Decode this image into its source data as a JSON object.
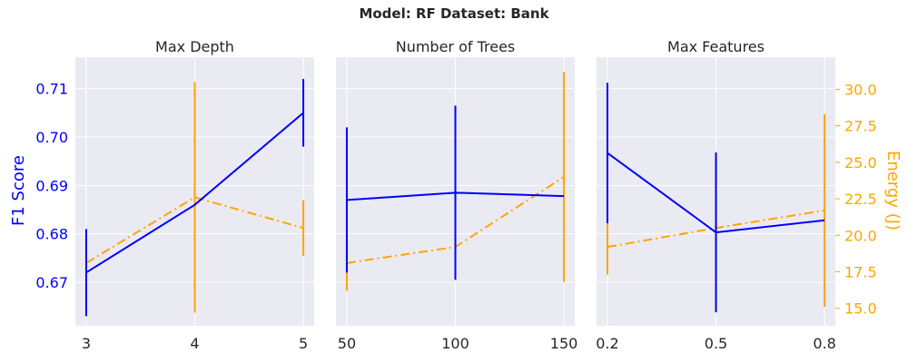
{
  "chart_data": {
    "suptitle": "Model: RF Dataset: Bank",
    "ylabel_left": "F1 Score",
    "ylabel_right": "Energy (J)",
    "left_axis": {
      "ylim": [
        0.661,
        0.7165
      ],
      "ticks": [
        "0.67",
        "0.68",
        "0.69",
        "0.70",
        "0.71"
      ],
      "tick_values": [
        0.67,
        0.68,
        0.69,
        0.7,
        0.71
      ],
      "color": "#0000ff"
    },
    "right_axis": {
      "ylim": [
        13.8,
        32.2
      ],
      "ticks": [
        "15.0",
        "17.5",
        "20.0",
        "22.5",
        "25.0",
        "27.5",
        "30.0"
      ],
      "tick_values": [
        15.0,
        17.5,
        20.0,
        22.5,
        25.0,
        27.5,
        30.0
      ],
      "color": "#ffa500"
    },
    "panels": [
      {
        "type": "line",
        "title": "Max Depth",
        "x": [
          3,
          4,
          5
        ],
        "xticks": [
          "3",
          "4",
          "5"
        ],
        "xlim": [
          2.9,
          5.1
        ],
        "f1": {
          "values": [
            0.672,
            0.686,
            0.705
          ],
          "err": [
            0.009,
            0.0,
            0.007
          ]
        },
        "energy": {
          "values": [
            18.1,
            22.6,
            20.5
          ],
          "err": [
            1.0,
            7.9,
            1.9
          ]
        }
      },
      {
        "type": "line",
        "title": "Number of Trees",
        "x": [
          50,
          100,
          150
        ],
        "xticks": [
          "50",
          "100",
          "150"
        ],
        "xlim": [
          45,
          155
        ],
        "f1": {
          "values": [
            0.687,
            0.6885,
            0.6878
          ],
          "err": [
            0.015,
            0.018,
            0.0
          ]
        },
        "energy": {
          "values": [
            18.1,
            19.2,
            24.0
          ],
          "err": [
            1.9,
            1.6,
            7.2
          ]
        }
      },
      {
        "type": "line",
        "title": "Max Features",
        "x": [
          0.2,
          0.5,
          0.8
        ],
        "xticks": [
          "0.2",
          "0.5",
          "0.8"
        ],
        "xlim": [
          0.17,
          0.83
        ],
        "f1": {
          "values": [
            0.6967,
            0.6803,
            0.6828
          ],
          "err": [
            0.0145,
            0.0165,
            0.0
          ]
        },
        "energy": {
          "values": [
            19.2,
            20.5,
            21.7
          ],
          "err": [
            1.9,
            5.2,
            6.6
          ]
        }
      }
    ]
  }
}
